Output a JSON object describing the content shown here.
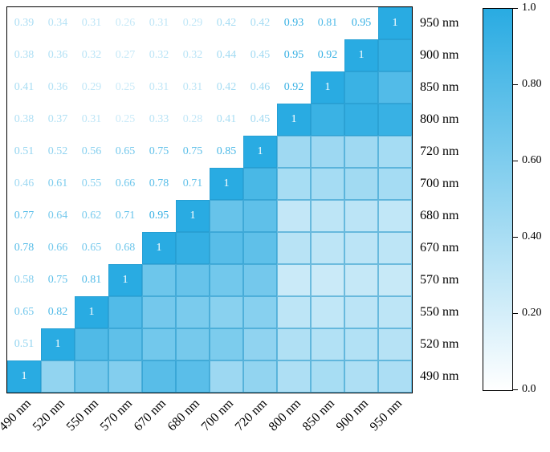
{
  "figure": {
    "background": "#ffffff",
    "frame_color": "#000000"
  },
  "chart_data": {
    "type": "heatmap",
    "title": "",
    "xlabel": "",
    "ylabel": "",
    "description": "Lower-triangle correlation matrix of spectral bands; numeric values printed above the anti-diagonal, colored cells below it, diagonal = 1",
    "x_categories": [
      "490 nm",
      "520 nm",
      "550 nm",
      "570 nm",
      "670 nm",
      "680 nm",
      "700 nm",
      "720 nm",
      "800 nm",
      "850 nm",
      "900 nm",
      "950 nm"
    ],
    "rows": [
      {
        "label": "950 nm",
        "values": [
          "0.39",
          "0.34",
          "0.31",
          "0.26",
          "0.31",
          "0.29",
          "0.42",
          "0.42",
          "0.93",
          "0.81",
          "0.95"
        ]
      },
      {
        "label": "900 nm",
        "values": [
          "0.38",
          "0.36",
          "0.32",
          "0.27",
          "0.32",
          "0.32",
          "0.44",
          "0.45",
          "0.95",
          "0.92"
        ]
      },
      {
        "label": "850 nm",
        "values": [
          "0.41",
          "0.36",
          "0.29",
          "0.25",
          "0.31",
          "0.31",
          "0.42",
          "0.46",
          "0.92"
        ]
      },
      {
        "label": "800 nm",
        "values": [
          "0.38",
          "0.37",
          "0.31",
          "0.25",
          "0.33",
          "0.28",
          "0.41",
          "0.45"
        ]
      },
      {
        "label": "720 nm",
        "values": [
          "0.51",
          "0.52",
          "0.56",
          "0.65",
          "0.75",
          "0.75",
          "0.85"
        ]
      },
      {
        "label": "700 nm",
        "values": [
          "0.46",
          "0.61",
          "0.55",
          "0.66",
          "0.78",
          "0.71"
        ]
      },
      {
        "label": "680 nm",
        "values": [
          "0.77",
          "0.64",
          "0.62",
          "0.71",
          "0.95"
        ]
      },
      {
        "label": "670 nm",
        "values": [
          "0.78",
          "0.66",
          "0.65",
          "0.68"
        ]
      },
      {
        "label": "570 nm",
        "values": [
          "0.58",
          "0.75",
          "0.81"
        ]
      },
      {
        "label": "550 nm",
        "values": [
          "0.65",
          "0.82"
        ]
      },
      {
        "label": "520 nm",
        "values": [
          "0.51"
        ]
      },
      {
        "label": "490 nm",
        "values": []
      }
    ],
    "diagonal_label": "1",
    "colormap": {
      "low": "#ffffff",
      "high": "#29abe2",
      "vmin": 0,
      "vmax": 1
    },
    "colorbar": {
      "position": "right",
      "ticks": [
        {
          "value": 1.0,
          "label": "1.0"
        },
        {
          "value": 0.8,
          "label": "0.80"
        },
        {
          "value": 0.6,
          "label": "0.60"
        },
        {
          "value": 0.4,
          "label": "0.40"
        },
        {
          "value": 0.2,
          "label": "0.20"
        },
        {
          "value": 0.0,
          "label": "0.0"
        }
      ]
    }
  }
}
